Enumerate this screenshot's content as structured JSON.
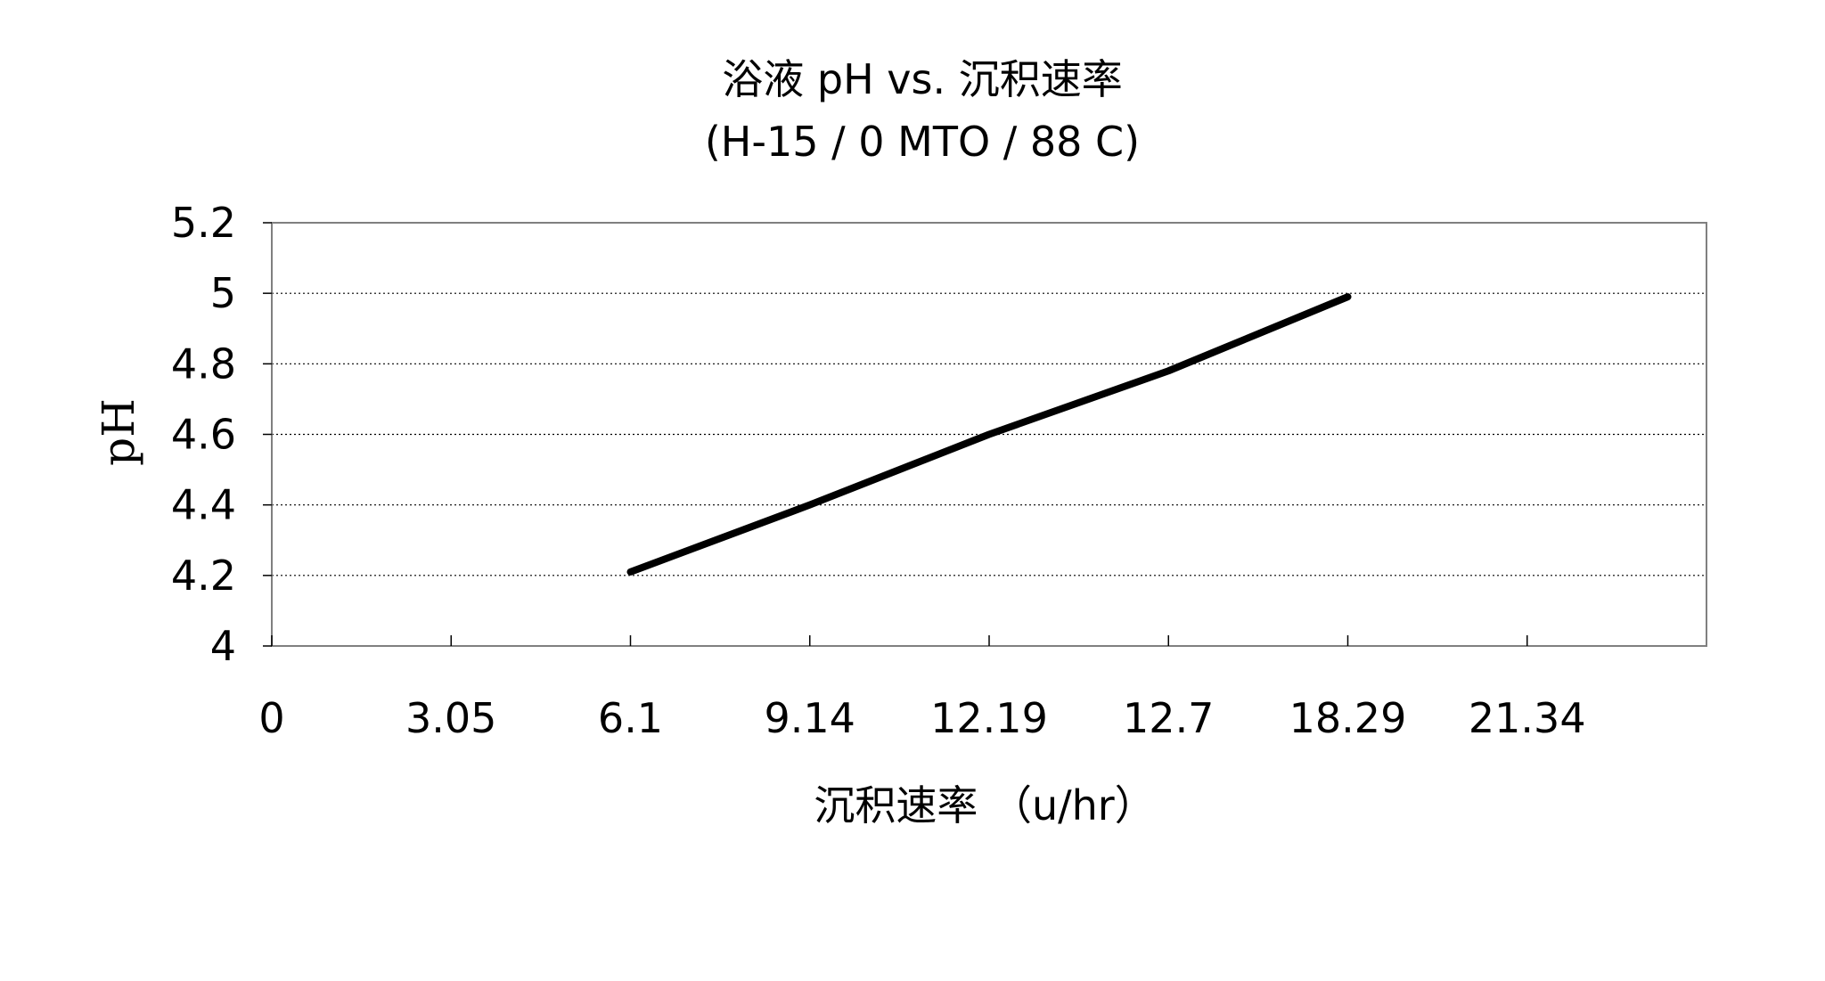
{
  "chart_data": {
    "type": "line",
    "title": "浴液 pH vs. 沉积速率",
    "subtitle": "(H-15 / 0 MTO / 88 C)",
    "xlabel": "沉积速率 （u/hr）",
    "ylabel": "pH",
    "categories": [
      "0",
      "3.05",
      "6.1",
      "9.14",
      "12.19",
      "12.7",
      "18.29",
      "21.34"
    ],
    "series": [
      {
        "values": [
          null,
          null,
          4.21,
          4.4,
          4.6,
          4.78,
          4.99,
          null
        ],
        "color": "#000000"
      }
    ],
    "y_ticks": [
      "4",
      "4.2",
      "4.4",
      "4.6",
      "4.8",
      "5",
      "5.2"
    ],
    "ylim": [
      4,
      5.2
    ],
    "grid": "horizontal dotted",
    "legend": "none"
  }
}
